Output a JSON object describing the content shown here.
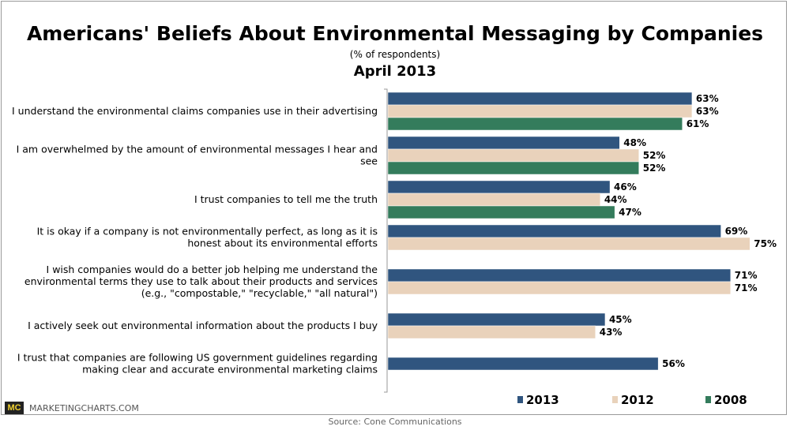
{
  "chart_data": {
    "type": "bar",
    "orientation": "horizontal",
    "title": "Americans' Beliefs About Environmental Messaging by Companies",
    "subtitle": "(% of respondents)",
    "date": "April 2013",
    "categories": [
      [
        "I understand the environmental claims companies use in their advertising"
      ],
      [
        "I am overwhelmed by the amount of environmental messages I hear and",
        "see"
      ],
      [
        "I trust companies to tell me the truth"
      ],
      [
        "It is okay if a company is not environmentally perfect, as long as it is",
        "honest about its environmental efforts"
      ],
      [
        "I wish companies would do a better job helping me understand the",
        "environmental terms they use to talk about their products and services",
        "(e.g., \"compostable,\" \"recyclable,\" \"all natural\")"
      ],
      [
        "I actively seek out environmental information about the products I buy"
      ],
      [
        "I trust that companies are following US government guidelines regarding",
        "making clear and accurate environmental marketing claims"
      ]
    ],
    "series": [
      {
        "name": "2013",
        "color": "#30557f",
        "values": [
          63,
          48,
          46,
          69,
          71,
          45,
          56
        ]
      },
      {
        "name": "2012",
        "color": "#e9d2bb",
        "values": [
          63,
          52,
          44,
          75,
          71,
          43,
          null
        ]
      },
      {
        "name": "2008",
        "color": "#347c5c",
        "values": [
          61,
          52,
          47,
          null,
          null,
          null,
          null
        ]
      }
    ],
    "value_suffix": "%",
    "legend": "bottom-right",
    "source": "Source: Cone Communications",
    "brand": "MARKETINGCHARTS.COM",
    "brand_logo": "MC"
  }
}
